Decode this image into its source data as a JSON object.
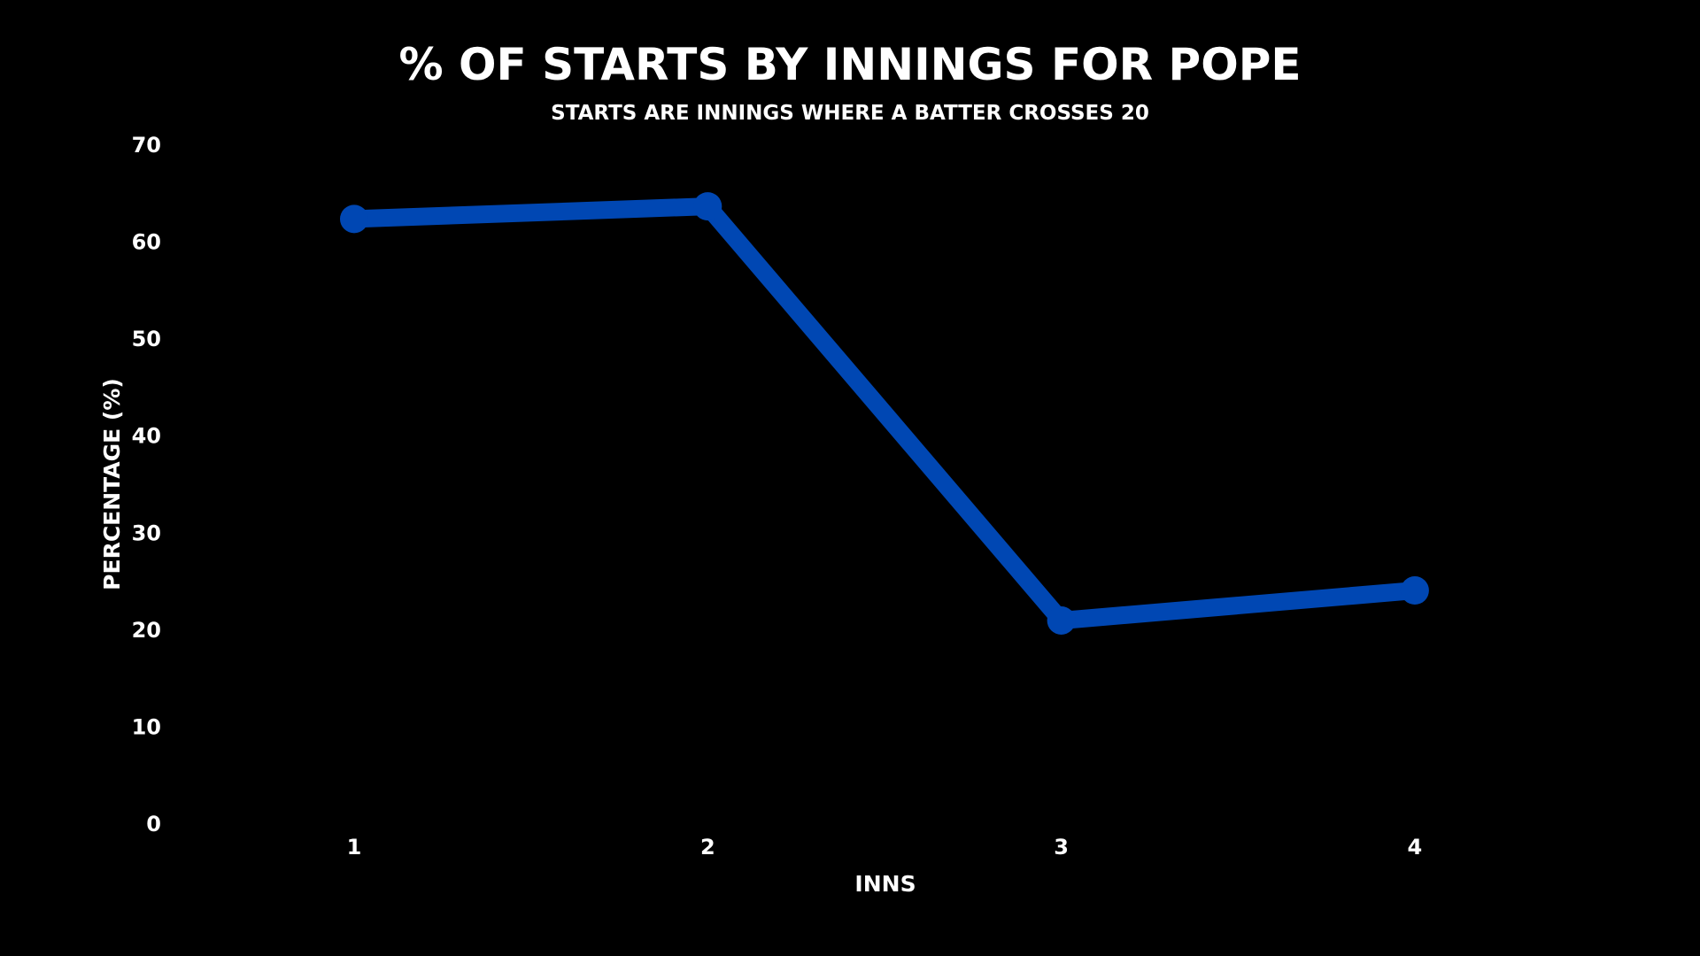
{
  "chart_data": {
    "type": "line",
    "title": "% OF STARTS BY INNINGS FOR POPE",
    "subtitle": "STARTS ARE INNINGS WHERE A BATTER CROSSES 20",
    "xlabel": "INNS",
    "ylabel": "PERCENTAGE (%)",
    "categories": [
      "1",
      "2",
      "3",
      "4"
    ],
    "y_ticks": [
      "0",
      "10",
      "20",
      "30",
      "40",
      "50",
      "60",
      "70"
    ],
    "ylim": [
      0,
      70
    ],
    "grid": false,
    "series": [
      {
        "values": [
          62.3,
          63.6,
          20.9,
          24.0
        ],
        "color": "#0047b3"
      }
    ]
  }
}
